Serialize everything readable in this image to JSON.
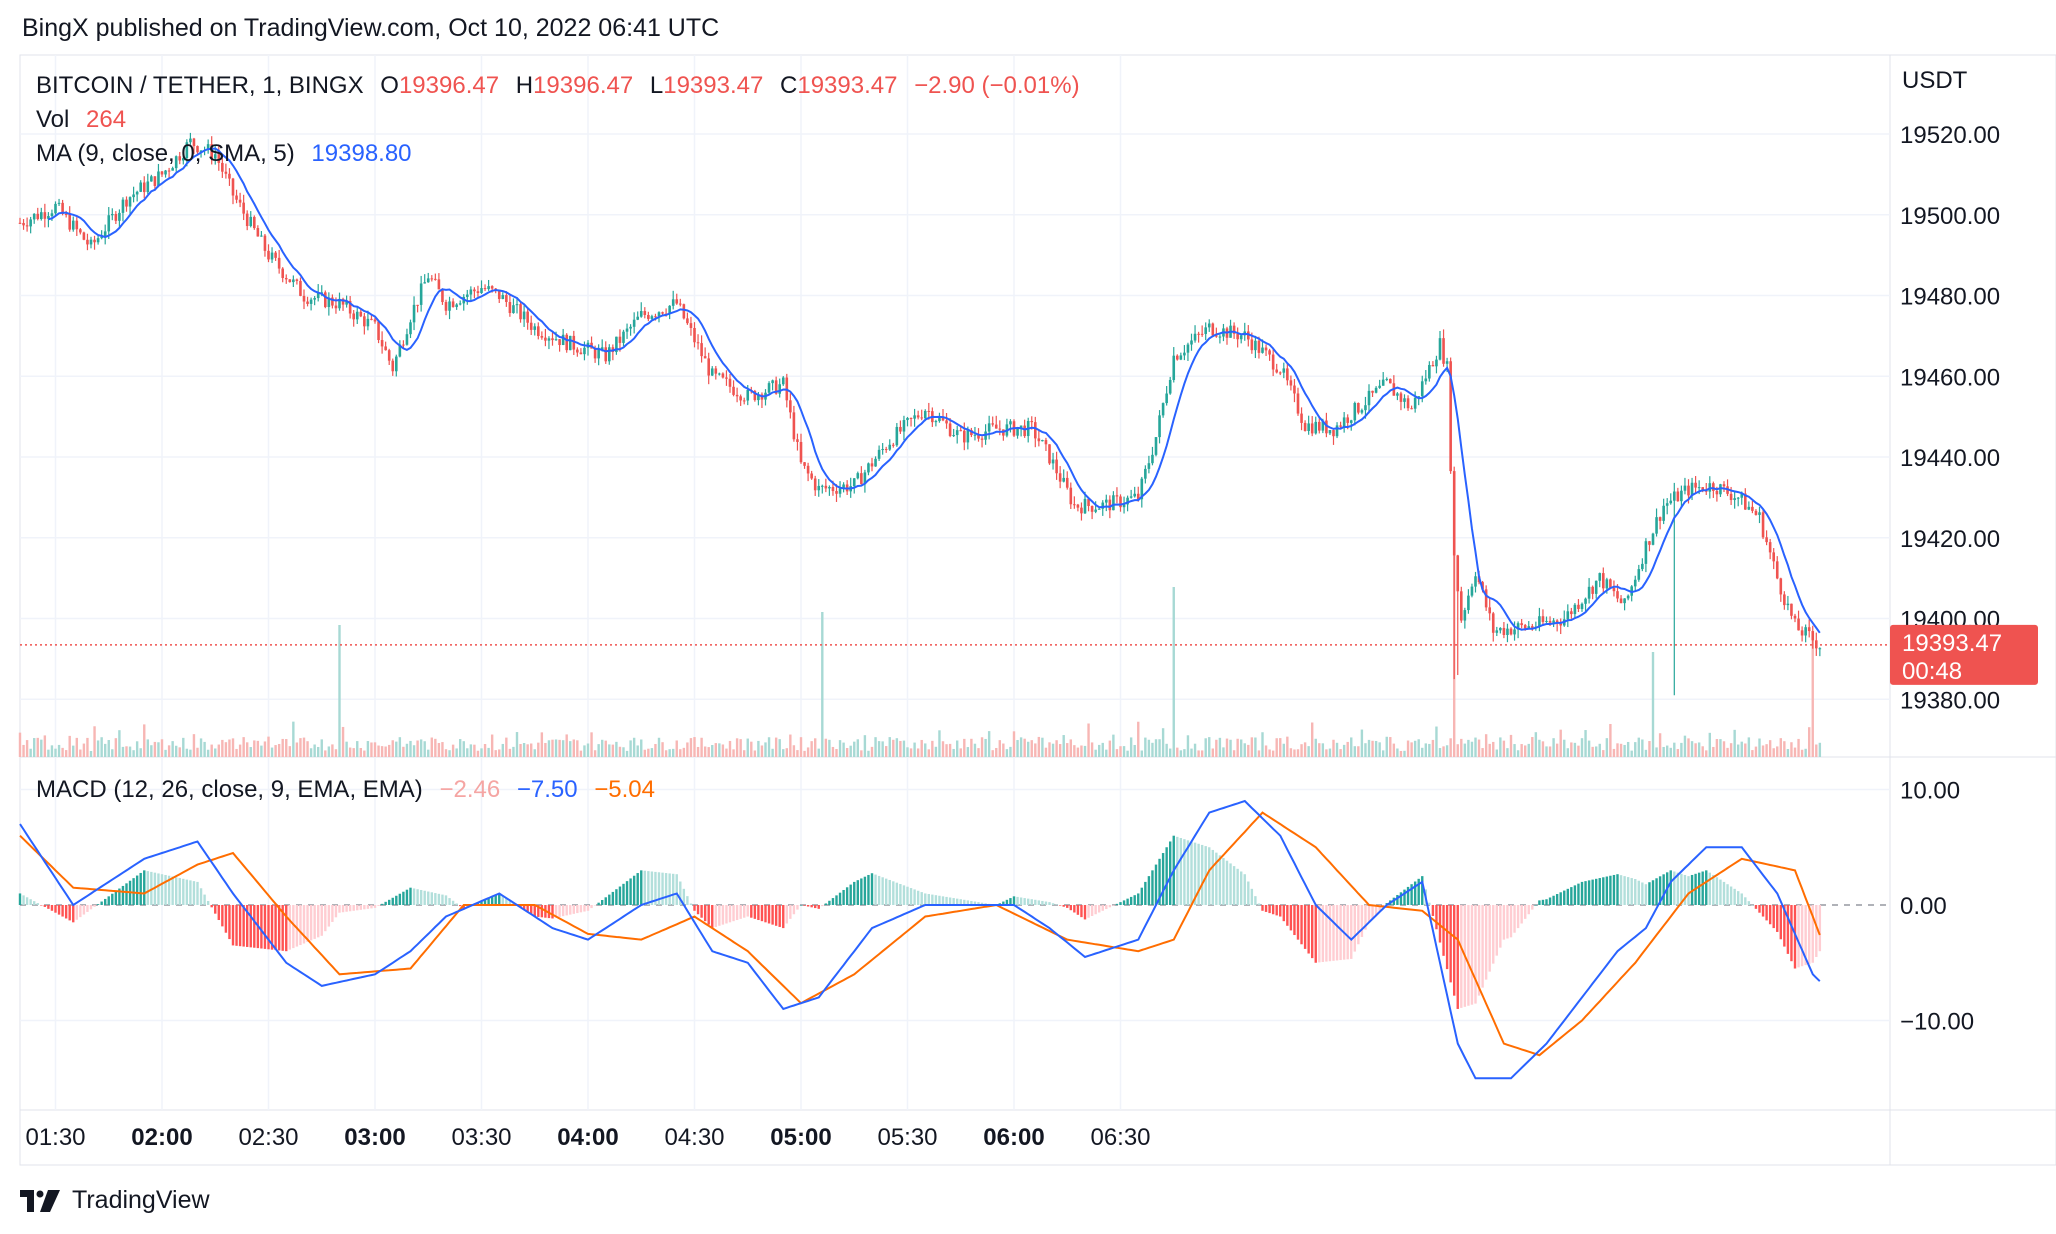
{
  "header": {
    "publish_text": "BingX published on TradingView.com, Oct 10, 2022 06:41 UTC"
  },
  "legend": {
    "symbol": "BITCOIN / TETHER, 1, BINGX",
    "o_label": "O",
    "o_value": "19396.47",
    "h_label": "H",
    "h_value": "19396.47",
    "l_label": "L",
    "l_value": "19393.47",
    "c_label": "C",
    "c_value": "19393.47",
    "change": "−2.90 (−0.01%)",
    "vol_label": "Vol",
    "vol_value": "264",
    "ma_label": "MA (9, close, 0, SMA, 5)",
    "ma_value": "19398.80",
    "macd_label": "MACD (12, 26, close, 9, EMA, EMA)",
    "macd_hist": "−2.46",
    "macd_line": "−7.50",
    "macd_signal": "−5.04"
  },
  "price_axis": {
    "unit": "USDT",
    "ticks": [
      "19520.00",
      "19500.00",
      "19480.00",
      "19460.00",
      "19440.00",
      "19420.00",
      "19400.00",
      "19380.00"
    ],
    "last_price": "19393.47",
    "countdown": "00:48"
  },
  "macd_axis": {
    "ticks": [
      "10.00",
      "0.00",
      "−10.00"
    ]
  },
  "time_axis": {
    "ticks": [
      {
        "label": "01:30",
        "bold": false
      },
      {
        "label": "02:00",
        "bold": true
      },
      {
        "label": "02:30",
        "bold": false
      },
      {
        "label": "03:00",
        "bold": true
      },
      {
        "label": "03:30",
        "bold": false
      },
      {
        "label": "04:00",
        "bold": true
      },
      {
        "label": "04:30",
        "bold": false
      },
      {
        "label": "05:00",
        "bold": true
      },
      {
        "label": "05:30",
        "bold": false
      },
      {
        "label": "06:00",
        "bold": true
      },
      {
        "label": "06:30",
        "bold": false
      }
    ]
  },
  "footer": {
    "brand": "TradingView"
  },
  "colors": {
    "up": "#26a69a",
    "down": "#ef5350",
    "ma": "#2962ff",
    "macd": "#2962ff",
    "signal": "#ff6d00",
    "grid": "#f0f3fa"
  },
  "chart_data": {
    "type": "candlestick",
    "timeframe": "1m",
    "time_range": [
      "01:20",
      "06:41"
    ],
    "ylim_price": [
      19365,
      19535
    ],
    "ylim_macd": [
      -18,
      12
    ],
    "price_path": [
      [
        0,
        19498
      ],
      [
        10,
        19502
      ],
      [
        20,
        19492
      ],
      [
        30,
        19504
      ],
      [
        40,
        19510
      ],
      [
        48,
        19518
      ],
      [
        55,
        19515
      ],
      [
        60,
        19505
      ],
      [
        70,
        19490
      ],
      [
        80,
        19480
      ],
      [
        90,
        19478
      ],
      [
        100,
        19472
      ],
      [
        105,
        19462
      ],
      [
        110,
        19475
      ],
      [
        115,
        19485
      ],
      [
        120,
        19478
      ],
      [
        130,
        19482
      ],
      [
        135,
        19480
      ],
      [
        145,
        19472
      ],
      [
        155,
        19468
      ],
      [
        165,
        19465
      ],
      [
        175,
        19475
      ],
      [
        185,
        19478
      ],
      [
        195,
        19460
      ],
      [
        205,
        19455
      ],
      [
        215,
        19458
      ],
      [
        220,
        19438
      ],
      [
        225,
        19432
      ],
      [
        235,
        19433
      ],
      [
        245,
        19444
      ],
      [
        255,
        19452
      ],
      [
        265,
        19445
      ],
      [
        275,
        19447
      ],
      [
        285,
        19447
      ],
      [
        290,
        19440
      ],
      [
        297,
        19428
      ],
      [
        305,
        19428
      ],
      [
        315,
        19430
      ],
      [
        320,
        19445
      ],
      [
        325,
        19465
      ],
      [
        335,
        19472
      ],
      [
        345,
        19470
      ],
      [
        355,
        19462
      ],
      [
        362,
        19448
      ],
      [
        370,
        19447
      ],
      [
        378,
        19453
      ],
      [
        385,
        19458
      ],
      [
        392,
        19452
      ],
      [
        400,
        19468
      ],
      [
        402,
        19462
      ],
      [
        404,
        19415
      ],
      [
        406,
        19400
      ],
      [
        410,
        19412
      ],
      [
        415,
        19397
      ],
      [
        425,
        19398
      ],
      [
        435,
        19400
      ],
      [
        445,
        19410
      ],
      [
        452,
        19403
      ],
      [
        458,
        19418
      ],
      [
        463,
        19428
      ],
      [
        470,
        19432
      ],
      [
        477,
        19433
      ],
      [
        484,
        19430
      ],
      [
        490,
        19425
      ],
      [
        495,
        19410
      ],
      [
        500,
        19398
      ],
      [
        507,
        19393.47
      ]
    ],
    "volume_spikes": [
      {
        "t": 90,
        "v": 264
      },
      {
        "t": 226,
        "v": 290
      },
      {
        "t": 325,
        "v": 340
      },
      {
        "t": 404,
        "v": 520
      },
      {
        "t": 460,
        "v": 210
      },
      {
        "t": 505,
        "v": 245
      }
    ],
    "macd_path": [
      [
        0,
        7
      ],
      [
        15,
        0
      ],
      [
        35,
        4
      ],
      [
        50,
        5.5
      ],
      [
        60,
        1
      ],
      [
        75,
        -5
      ],
      [
        85,
        -7
      ],
      [
        100,
        -6
      ],
      [
        110,
        -4
      ],
      [
        120,
        -1
      ],
      [
        135,
        1
      ],
      [
        150,
        -2
      ],
      [
        160,
        -3
      ],
      [
        175,
        0
      ],
      [
        185,
        1
      ],
      [
        195,
        -4
      ],
      [
        205,
        -5
      ],
      [
        215,
        -9
      ],
      [
        225,
        -8
      ],
      [
        240,
        -2
      ],
      [
        255,
        0
      ],
      [
        265,
        0
      ],
      [
        280,
        0
      ],
      [
        290,
        -2
      ],
      [
        300,
        -4.5
      ],
      [
        315,
        -3
      ],
      [
        325,
        3
      ],
      [
        335,
        8
      ],
      [
        345,
        9
      ],
      [
        355,
        6
      ],
      [
        365,
        0
      ],
      [
        375,
        -3
      ],
      [
        385,
        0
      ],
      [
        395,
        2
      ],
      [
        405,
        -12
      ],
      [
        410,
        -15
      ],
      [
        420,
        -15
      ],
      [
        430,
        -12
      ],
      [
        440,
        -8
      ],
      [
        450,
        -4
      ],
      [
        458,
        -2
      ],
      [
        465,
        2
      ],
      [
        475,
        5
      ],
      [
        485,
        5
      ],
      [
        495,
        1
      ],
      [
        505,
        -6
      ],
      [
        510,
        -7.5
      ]
    ],
    "signal_path": [
      [
        0,
        6
      ],
      [
        15,
        1.5
      ],
      [
        35,
        1
      ],
      [
        50,
        3.5
      ],
      [
        60,
        4.5
      ],
      [
        75,
        -1
      ],
      [
        90,
        -6
      ],
      [
        110,
        -5.5
      ],
      [
        125,
        0
      ],
      [
        145,
        0
      ],
      [
        160,
        -2.5
      ],
      [
        175,
        -3
      ],
      [
        190,
        -1
      ],
      [
        205,
        -4
      ],
      [
        220,
        -8.5
      ],
      [
        235,
        -6
      ],
      [
        255,
        -1
      ],
      [
        275,
        0
      ],
      [
        295,
        -3
      ],
      [
        315,
        -4
      ],
      [
        325,
        -3
      ],
      [
        335,
        3
      ],
      [
        350,
        8
      ],
      [
        365,
        5
      ],
      [
        380,
        0
      ],
      [
        395,
        -0.5
      ],
      [
        405,
        -3
      ],
      [
        418,
        -12
      ],
      [
        428,
        -13
      ],
      [
        440,
        -10
      ],
      [
        455,
        -5
      ],
      [
        470,
        1
      ],
      [
        485,
        4
      ],
      [
        500,
        3
      ],
      [
        510,
        -5
      ]
    ]
  }
}
